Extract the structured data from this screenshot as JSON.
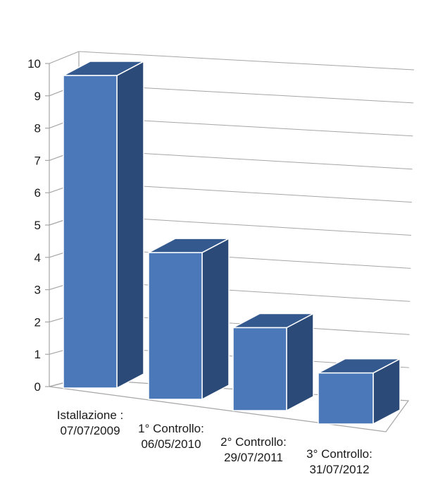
{
  "chart_data": {
    "type": "bar",
    "style": "3d-column",
    "title": "",
    "xlabel": "",
    "ylabel": "",
    "ylim": [
      0,
      10
    ],
    "yticks": [
      0,
      1,
      2,
      3,
      4,
      5,
      6,
      7,
      8,
      9,
      10
    ],
    "grid": true,
    "legend": "none",
    "categories": [
      [
        "Istallazione :",
        "07/07/2009"
      ],
      [
        "1° Controllo:",
        "06/05/2010"
      ],
      [
        "2° Controllo:",
        "29/07/2011"
      ],
      [
        "3° Controllo:",
        "31/07/2012"
      ]
    ],
    "values": [
      9.8,
      4.6,
      2.6,
      1.6
    ],
    "colors": {
      "front": "#4A78B8",
      "side": "#2B4A78",
      "top": "#34598F",
      "edge": "#ffffff",
      "grid": "#a6a6a6"
    }
  }
}
